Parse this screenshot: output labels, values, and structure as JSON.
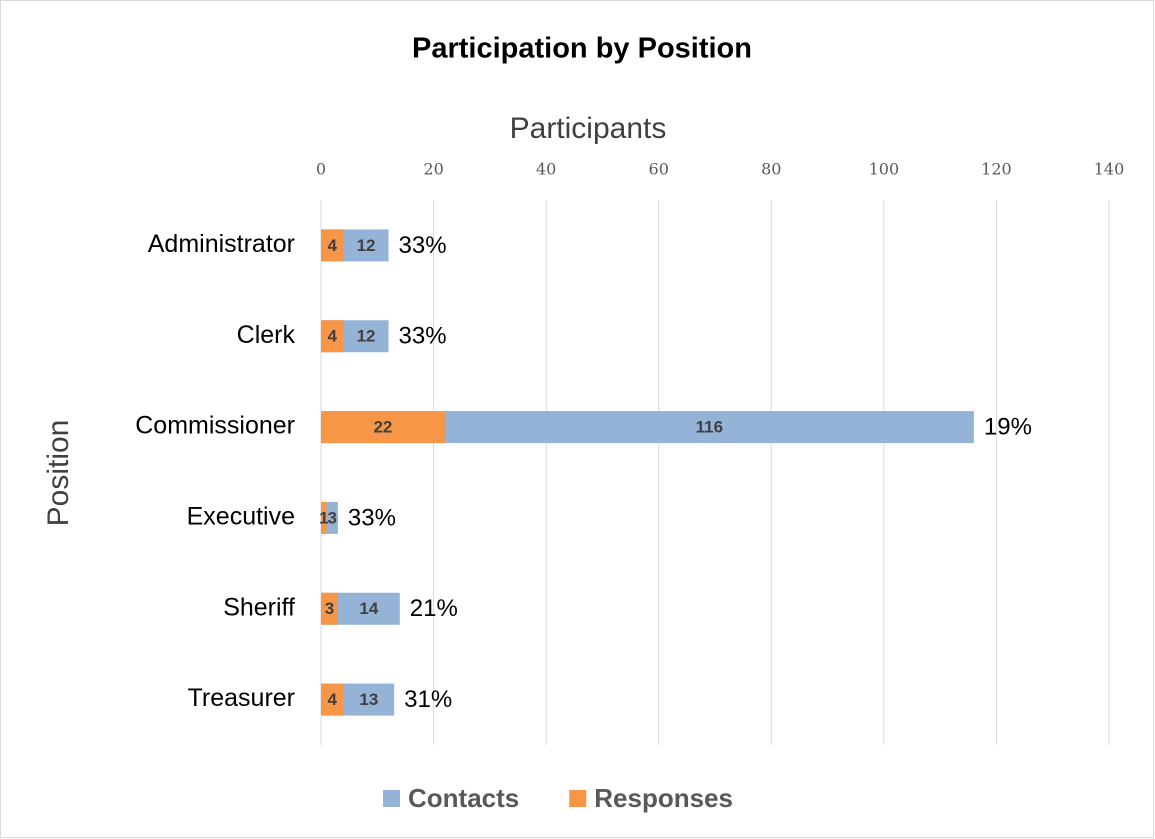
{
  "chart_data": {
    "type": "bar",
    "orientation": "horizontal",
    "title": "Participation by Position",
    "x_label": "Participants",
    "y_label": "Position",
    "categories": [
      "Administrator",
      "Clerk",
      "Commissioner",
      "Executive",
      "Sheriff",
      "Treasurer"
    ],
    "series": [
      {
        "name": "Contacts",
        "color": "#95b3d7",
        "values": [
          12,
          12,
          116,
          3,
          14,
          13
        ]
      },
      {
        "name": "Responses",
        "color": "#f79646",
        "values": [
          4,
          4,
          22,
          1,
          3,
          4
        ]
      }
    ],
    "annotations": [
      "33%",
      "33%",
      "19%",
      "33%",
      "21%",
      "31%"
    ],
    "xlim": [
      0,
      140
    ],
    "xticks": [
      0,
      20,
      40,
      60,
      80,
      100,
      120,
      140
    ],
    "grid": true,
    "legend": "bottom"
  }
}
